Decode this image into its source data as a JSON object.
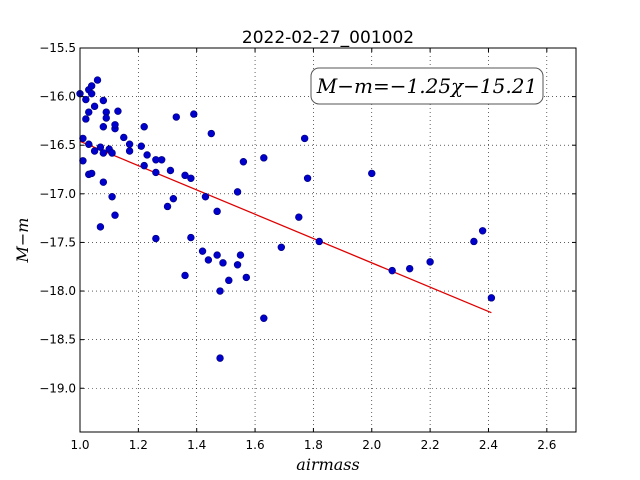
{
  "chart_data": {
    "type": "scatter",
    "title": "2022-02-27_001002",
    "xlabel": "airmass",
    "ylabel": "M−m",
    "xlim": [
      1.0,
      2.7
    ],
    "ylim": [
      -15.5,
      -19.45
    ],
    "y_axis_inverted": true,
    "grid": true,
    "xticks": [
      "1.0",
      "1.2",
      "1.4",
      "1.6",
      "1.8",
      "2.0",
      "2.2",
      "2.4",
      "2.6"
    ],
    "yticks": [
      "−15.5",
      "−16.0",
      "−16.5",
      "−17.0",
      "−17.5",
      "−18.0",
      "−18.5",
      "−19.0"
    ],
    "annotation": "M−m=−1.25χ−15.21",
    "annotation_placement": "top-right",
    "colors": {
      "points": "#0000cc",
      "fit_line": "#e00000"
    },
    "fit": {
      "slope": -1.25,
      "intercept": -15.21,
      "x_range": [
        1.0,
        2.41
      ]
    },
    "points": [
      {
        "x": 1.0,
        "y": -15.97
      },
      {
        "x": 1.01,
        "y": -16.43
      },
      {
        "x": 1.01,
        "y": -16.66
      },
      {
        "x": 1.02,
        "y": -16.03
      },
      {
        "x": 1.02,
        "y": -16.23
      },
      {
        "x": 1.03,
        "y": -15.93
      },
      {
        "x": 1.03,
        "y": -16.16
      },
      {
        "x": 1.04,
        "y": -15.97
      },
      {
        "x": 1.04,
        "y": -15.89
      },
      {
        "x": 1.03,
        "y": -16.49
      },
      {
        "x": 1.03,
        "y": -16.8
      },
      {
        "x": 1.04,
        "y": -16.79
      },
      {
        "x": 1.05,
        "y": -16.1
      },
      {
        "x": 1.05,
        "y": -16.56
      },
      {
        "x": 1.06,
        "y": -15.83
      },
      {
        "x": 1.07,
        "y": -16.52
      },
      {
        "x": 1.07,
        "y": -17.34
      },
      {
        "x": 1.08,
        "y": -16.04
      },
      {
        "x": 1.08,
        "y": -16.31
      },
      {
        "x": 1.08,
        "y": -16.58
      },
      {
        "x": 1.08,
        "y": -16.88
      },
      {
        "x": 1.09,
        "y": -16.16
      },
      {
        "x": 1.09,
        "y": -16.22
      },
      {
        "x": 1.1,
        "y": -16.54
      },
      {
        "x": 1.11,
        "y": -16.58
      },
      {
        "x": 1.11,
        "y": -17.03
      },
      {
        "x": 1.12,
        "y": -16.33
      },
      {
        "x": 1.12,
        "y": -16.29
      },
      {
        "x": 1.12,
        "y": -17.22
      },
      {
        "x": 1.13,
        "y": -16.15
      },
      {
        "x": 1.15,
        "y": -16.42
      },
      {
        "x": 1.17,
        "y": -16.49
      },
      {
        "x": 1.17,
        "y": -16.56
      },
      {
        "x": 1.21,
        "y": -16.51
      },
      {
        "x": 1.22,
        "y": -16.31
      },
      {
        "x": 1.22,
        "y": -16.71
      },
      {
        "x": 1.23,
        "y": -16.6
      },
      {
        "x": 1.26,
        "y": -16.65
      },
      {
        "x": 1.26,
        "y": -16.78
      },
      {
        "x": 1.26,
        "y": -17.46
      },
      {
        "x": 1.28,
        "y": -16.65
      },
      {
        "x": 1.3,
        "y": -17.13
      },
      {
        "x": 1.31,
        "y": -16.76
      },
      {
        "x": 1.32,
        "y": -17.05
      },
      {
        "x": 1.33,
        "y": -16.21
      },
      {
        "x": 1.36,
        "y": -16.81
      },
      {
        "x": 1.36,
        "y": -17.84
      },
      {
        "x": 1.38,
        "y": -16.84
      },
      {
        "x": 1.38,
        "y": -17.45
      },
      {
        "x": 1.39,
        "y": -16.18
      },
      {
        "x": 1.42,
        "y": -17.59
      },
      {
        "x": 1.43,
        "y": -17.03
      },
      {
        "x": 1.44,
        "y": -17.68
      },
      {
        "x": 1.45,
        "y": -16.38
      },
      {
        "x": 1.47,
        "y": -17.18
      },
      {
        "x": 1.47,
        "y": -17.63
      },
      {
        "x": 1.48,
        "y": -18.69
      },
      {
        "x": 1.48,
        "y": -18.0
      },
      {
        "x": 1.49,
        "y": -17.71
      },
      {
        "x": 1.51,
        "y": -17.89
      },
      {
        "x": 1.54,
        "y": -16.98
      },
      {
        "x": 1.54,
        "y": -17.73
      },
      {
        "x": 1.55,
        "y": -17.63
      },
      {
        "x": 1.56,
        "y": -16.67
      },
      {
        "x": 1.57,
        "y": -17.86
      },
      {
        "x": 1.63,
        "y": -16.63
      },
      {
        "x": 1.63,
        "y": -18.28
      },
      {
        "x": 1.69,
        "y": -17.55
      },
      {
        "x": 1.75,
        "y": -17.24
      },
      {
        "x": 1.77,
        "y": -16.43
      },
      {
        "x": 1.78,
        "y": -16.84
      },
      {
        "x": 1.82,
        "y": -17.49
      },
      {
        "x": 2.0,
        "y": -16.79
      },
      {
        "x": 2.07,
        "y": -17.79
      },
      {
        "x": 2.13,
        "y": -17.77
      },
      {
        "x": 2.2,
        "y": -17.7
      },
      {
        "x": 2.35,
        "y": -17.49
      },
      {
        "x": 2.38,
        "y": -17.38
      },
      {
        "x": 2.41,
        "y": -18.07
      }
    ]
  }
}
